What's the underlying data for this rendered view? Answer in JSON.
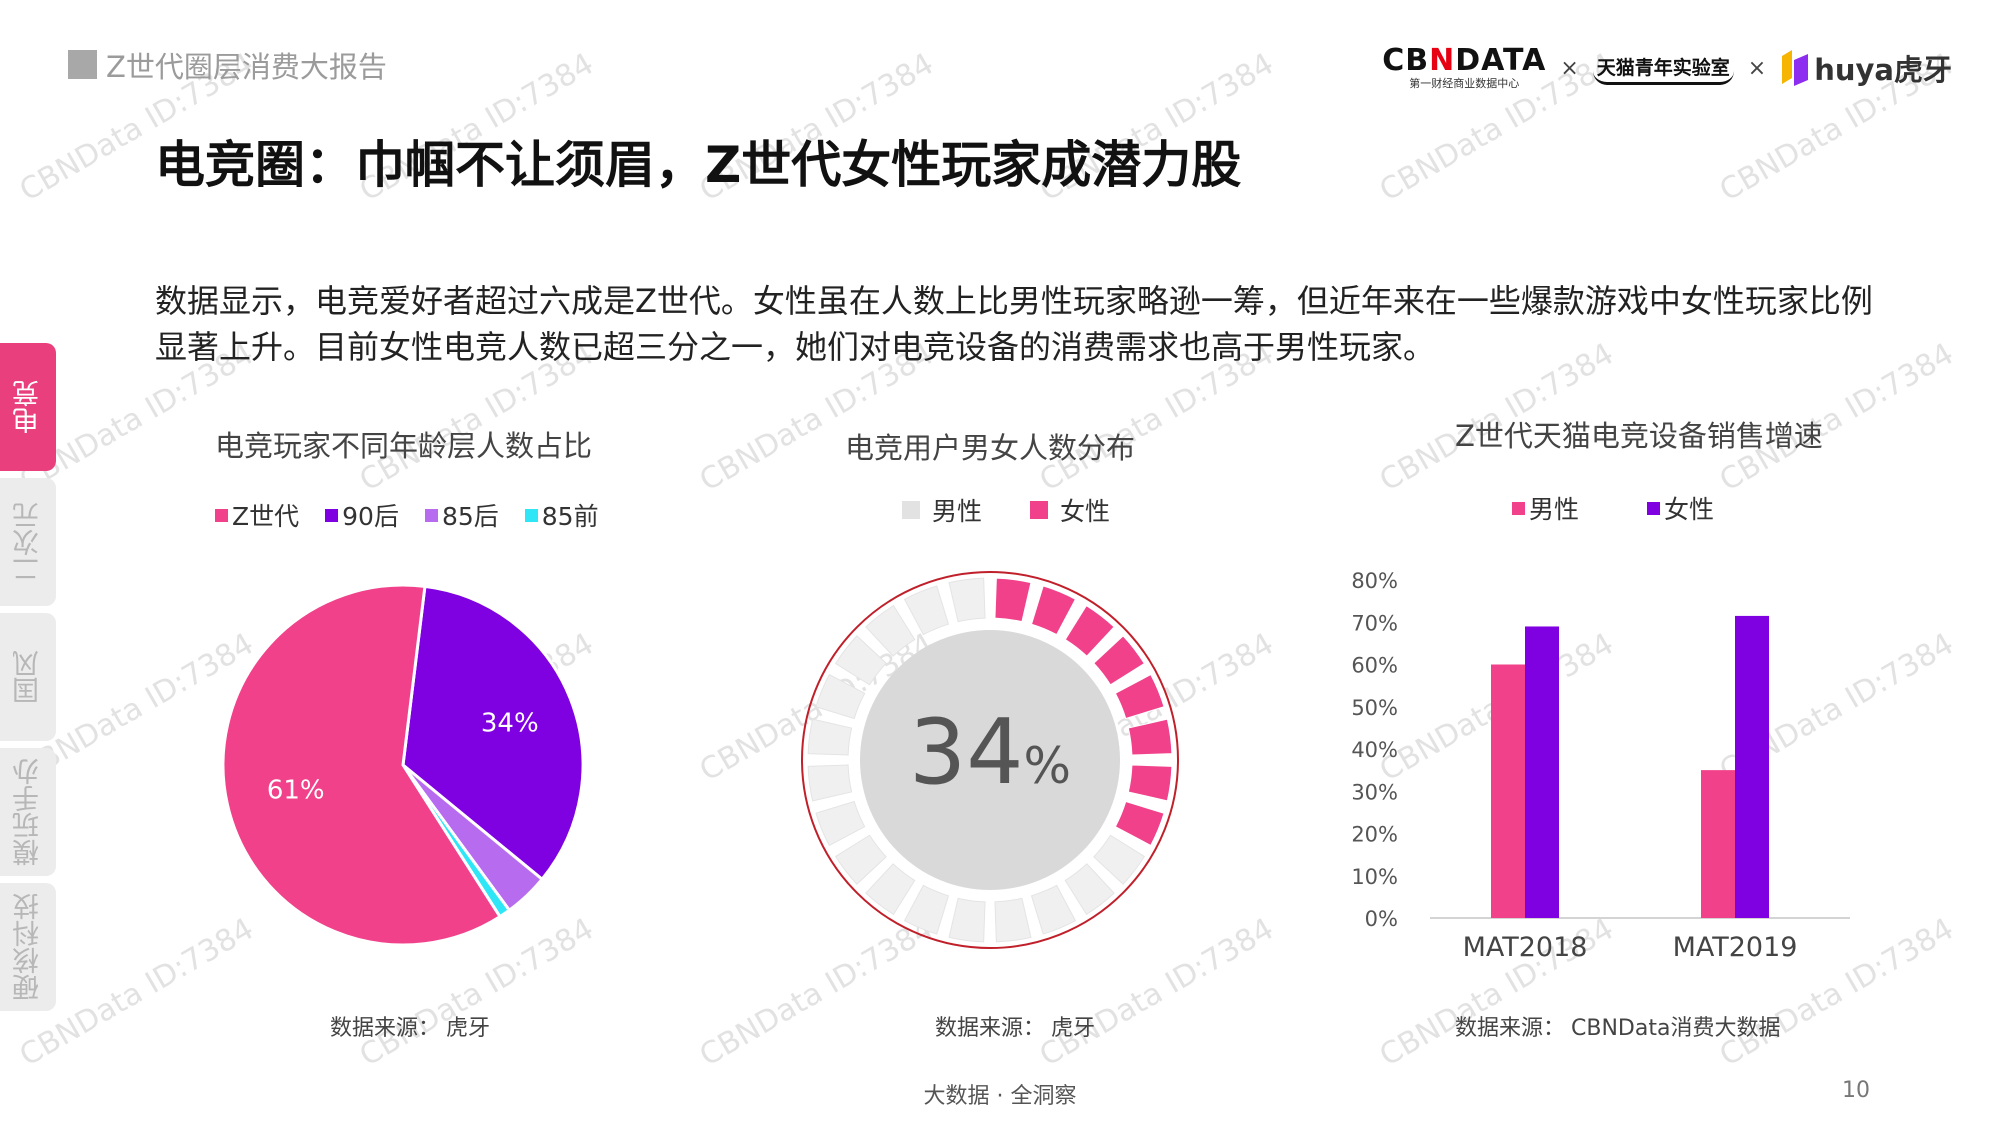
{
  "header": {
    "report_title": "Z世代圈层消费大报告",
    "logos": {
      "cbndata_main_a": "CB",
      "cbndata_main_n": "N",
      "cbndata_main_b": "DATA",
      "cbndata_sub": "第一财经商业数据中心",
      "x1": "×",
      "tmall_lab": "天猫青年实验室",
      "x2": "×",
      "huya": "huya虎牙"
    }
  },
  "page_title": "电竞圈：巾帼不让须眉，Z世代女性玩家成潜力股",
  "intro_text": "数据显示，电竞爱好者超过六成是Z世代。女性虽在人数上比男性玩家略逊一筹，但近年来在一些爆款游戏中女性玩家比例显著上升。目前女性电竞人数已超三分之一，她们对电竞设备的消费需求也高于男性玩家。",
  "side_tabs": [
    {
      "label": "电竞",
      "active": true
    },
    {
      "label": "二次元",
      "active": false
    },
    {
      "label": "国风",
      "active": false
    },
    {
      "label": "模玩手办",
      "active": false
    },
    {
      "label": "硬核科技",
      "active": false
    }
  ],
  "colors": {
    "pink": "#f0418a",
    "purple": "#7f00e0",
    "lavender": "#b76cf0",
    "cyan": "#2ee6f5",
    "gray_seg": "#f0f0f0",
    "donut_ring": "#c0202a",
    "tab_active": "#ea3f7d"
  },
  "chart_data": [
    {
      "type": "pie",
      "title": "电竞玩家不同年龄层人数占比",
      "legend_position": "top",
      "slices": [
        {
          "name": "Z世代",
          "value": 61,
          "label": "61%",
          "color": "#f0418a"
        },
        {
          "name": "90后",
          "value": 34,
          "label": "34%",
          "color": "#7f00e0"
        },
        {
          "name": "85后",
          "value": 4,
          "label": "",
          "color": "#b76cf0"
        },
        {
          "name": "85前",
          "value": 1,
          "label": "",
          "color": "#2ee6f5"
        }
      ],
      "source_label": "数据来源：",
      "source_value": "虎牙"
    },
    {
      "type": "pie",
      "title": "电竞用户男女人数分布",
      "legend_position": "top",
      "style": "segmented-donut",
      "center_number": "34",
      "center_unit": "%",
      "total_segments": 24,
      "series": [
        {
          "name": "男性",
          "value": 66,
          "color": "#e2e2e2"
        },
        {
          "name": "女性",
          "value": 34,
          "color": "#f0418a"
        }
      ],
      "source_label": "数据来源：",
      "source_value": "虎牙"
    },
    {
      "type": "bar",
      "title": "Z世代天猫电竞设备销售增速",
      "legend_position": "top",
      "categories": [
        "MAT2018",
        "MAT2019"
      ],
      "series": [
        {
          "name": "男性",
          "values": [
            60,
            35
          ],
          "color": "#f0418a"
        },
        {
          "name": "女性",
          "values": [
            69,
            71.5
          ],
          "color": "#7f00e0"
        }
      ],
      "ylim": [
        0,
        80
      ],
      "yticks": [
        "0%",
        "10%",
        "20%",
        "30%",
        "40%",
        "50%",
        "60%",
        "70%",
        "80%"
      ],
      "grid": false,
      "source_label": "数据来源：",
      "source_value": "CBNData消费大数据"
    }
  ],
  "watermark": "CBNData ID:7384",
  "footer": {
    "tagline": "大数据 · 全洞察",
    "page_number": "10"
  }
}
